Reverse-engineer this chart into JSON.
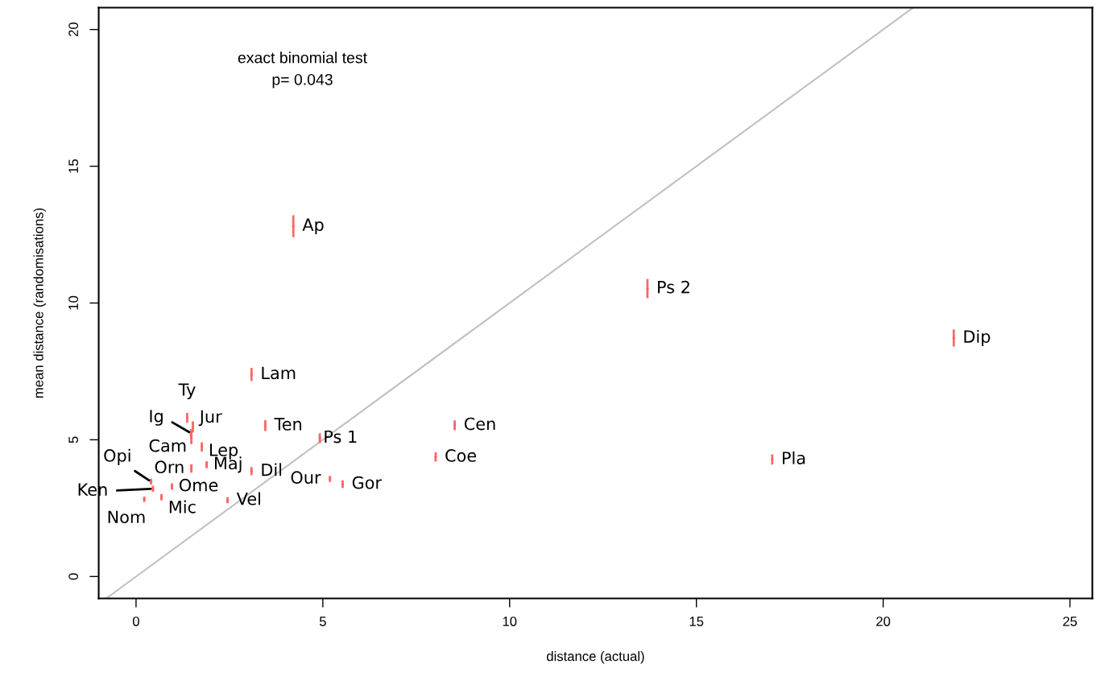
{
  "chart_data": {
    "type": "scatter",
    "xlabel": "distance (actual)",
    "ylabel": "mean distance (randomisations)",
    "xlim": [
      -1.0,
      25.6
    ],
    "ylim": [
      -0.8,
      20.8
    ],
    "xticks": [
      0,
      5,
      10,
      15,
      20,
      25
    ],
    "yticks": [
      0,
      5,
      10,
      15,
      20
    ],
    "grid": false,
    "series": [
      {
        "type": "line",
        "color": "#c0c0c0",
        "x": [
          -0.8,
          20.8
        ],
        "values": [
          -0.8,
          20.8
        ]
      },
      {
        "color": "#ff6666",
        "x": [
          4.21,
          13.69,
          21.89,
          3.09,
          1.37,
          1.47,
          1.52,
          1.48,
          1.76,
          3.46,
          4.92,
          8.53,
          8.02,
          17.03,
          1.48,
          1.89,
          3.09,
          0.4,
          0.45,
          0.96,
          0.22,
          0.68,
          2.45,
          5.19,
          5.53
        ],
        "values": [
          12.81,
          10.53,
          8.72,
          7.39,
          5.8,
          5.24,
          5.47,
          5.06,
          4.74,
          5.52,
          5.06,
          5.53,
          4.37,
          4.28,
          3.95,
          4.09,
          3.85,
          3.47,
          3.21,
          3.29,
          2.82,
          2.9,
          2.79,
          3.57,
          3.38
        ],
        "errors": [
          0.4,
          0.35,
          0.31,
          0.24,
          0.18,
          0.15,
          0.2,
          0.22,
          0.17,
          0.2,
          0.18,
          0.18,
          0.17,
          0.19,
          0.15,
          0.13,
          0.15,
          0.11,
          0.11,
          0.12,
          0.1,
          0.12,
          0.11,
          0.11,
          0.14
        ]
      }
    ],
    "annotations": [
      {
        "text": "Ap",
        "x": 4.21,
        "y": 12.81
      },
      {
        "text": "Ps 2",
        "x": 13.69,
        "y": 10.53
      },
      {
        "text": "Dip",
        "x": 21.89,
        "y": 8.72
      },
      {
        "text": "Lam",
        "x": 3.09,
        "y": 7.39
      },
      {
        "text": "Ty",
        "x": 1.37,
        "y": 5.8
      },
      {
        "text": "Ig",
        "x": 1.47,
        "y": 5.24
      },
      {
        "text": "Jur",
        "x": 1.52,
        "y": 5.47
      },
      {
        "text": "Cam",
        "x": 1.48,
        "y": 5.06
      },
      {
        "text": "Lep",
        "x": 1.76,
        "y": 4.74
      },
      {
        "text": "Ten",
        "x": 3.46,
        "y": 5.52
      },
      {
        "text": "Ps 1",
        "x": 4.92,
        "y": 5.06
      },
      {
        "text": "Cen",
        "x": 8.53,
        "y": 5.53
      },
      {
        "text": "Coe",
        "x": 8.02,
        "y": 4.37
      },
      {
        "text": "Pla",
        "x": 17.03,
        "y": 4.28
      },
      {
        "text": "Orn",
        "x": 1.48,
        "y": 3.95
      },
      {
        "text": "Maj",
        "x": 1.89,
        "y": 4.09
      },
      {
        "text": "Dil",
        "x": 3.09,
        "y": 3.85
      },
      {
        "text": "Opi",
        "x": 0.4,
        "y": 3.47
      },
      {
        "text": "Ken",
        "x": 0.45,
        "y": 3.21
      },
      {
        "text": "Ome",
        "x": 0.96,
        "y": 3.29
      },
      {
        "text": "Nom",
        "x": 0.22,
        "y": 2.82
      },
      {
        "text": "Mic",
        "x": 0.68,
        "y": 2.9
      },
      {
        "text": "Vel",
        "x": 2.45,
        "y": 2.79
      },
      {
        "text": "Our",
        "x": 5.19,
        "y": 3.57
      },
      {
        "text": "Gor",
        "x": 5.53,
        "y": 3.38
      },
      "exact binomial test",
      "p= 0.043"
    ]
  }
}
